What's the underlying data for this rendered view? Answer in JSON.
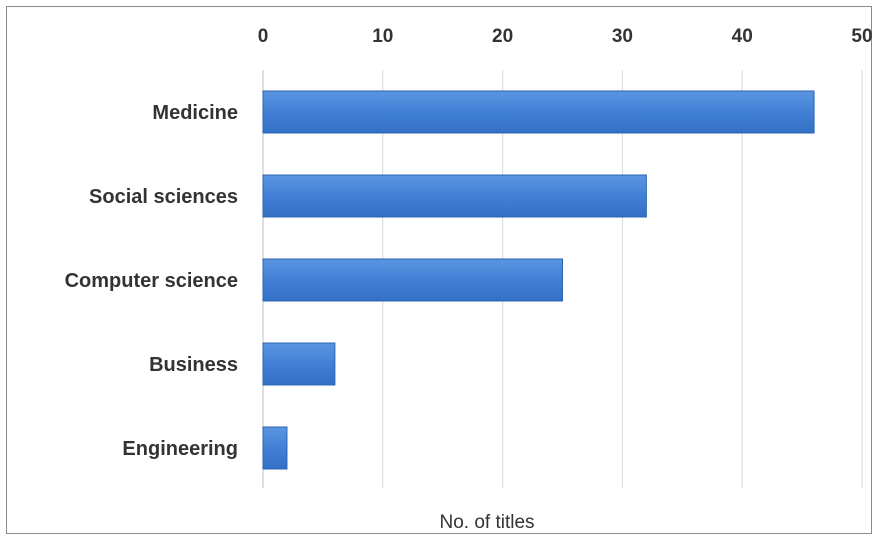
{
  "chart_data": {
    "type": "bar",
    "orientation": "horizontal",
    "categories": [
      "Medicine",
      "Social sciences",
      "Computer science",
      "Business",
      "Engineering"
    ],
    "values": [
      46,
      32,
      25,
      6,
      2
    ],
    "xlabel": "No. of titles",
    "ylabel": "",
    "xlim": [
      0,
      50
    ],
    "xticks": [
      0,
      10,
      20,
      30,
      40,
      50
    ],
    "x_axis_position": "top",
    "grid": true,
    "colors": {
      "bar": "#3f7fd4",
      "bar_edge": "#2b64b3",
      "grid": "#d9d9d9"
    }
  }
}
